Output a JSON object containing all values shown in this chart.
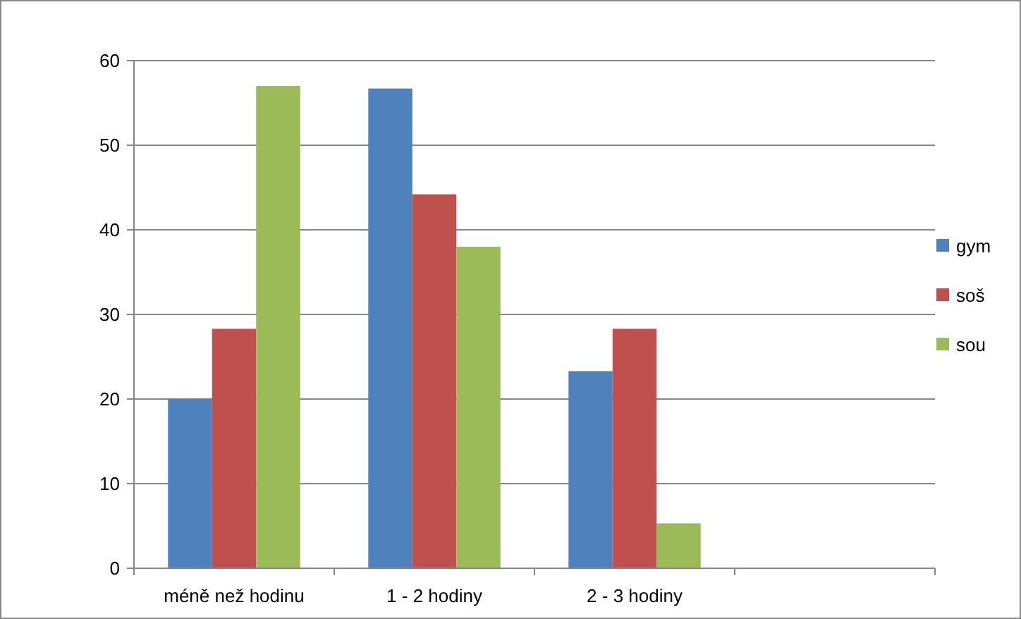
{
  "chart_data": {
    "type": "bar",
    "categories": [
      "méně než hodinu",
      "1 - 2 hodiny",
      "2 - 3 hodiny",
      null
    ],
    "series": [
      {
        "name": "gym",
        "color": "#4f81bd",
        "values": [
          20,
          56.7,
          23.3,
          null
        ]
      },
      {
        "name": "soš",
        "color": "#c0504d",
        "values": [
          28.3,
          44.2,
          28.3,
          null
        ]
      },
      {
        "name": "sou",
        "color": "#9bbb59",
        "values": [
          57,
          38,
          5.3,
          null
        ]
      }
    ],
    "ylim": [
      0,
      60
    ],
    "yticks": [
      0,
      10,
      20,
      30,
      40,
      50,
      60
    ],
    "grid": "y",
    "legend": "right"
  }
}
